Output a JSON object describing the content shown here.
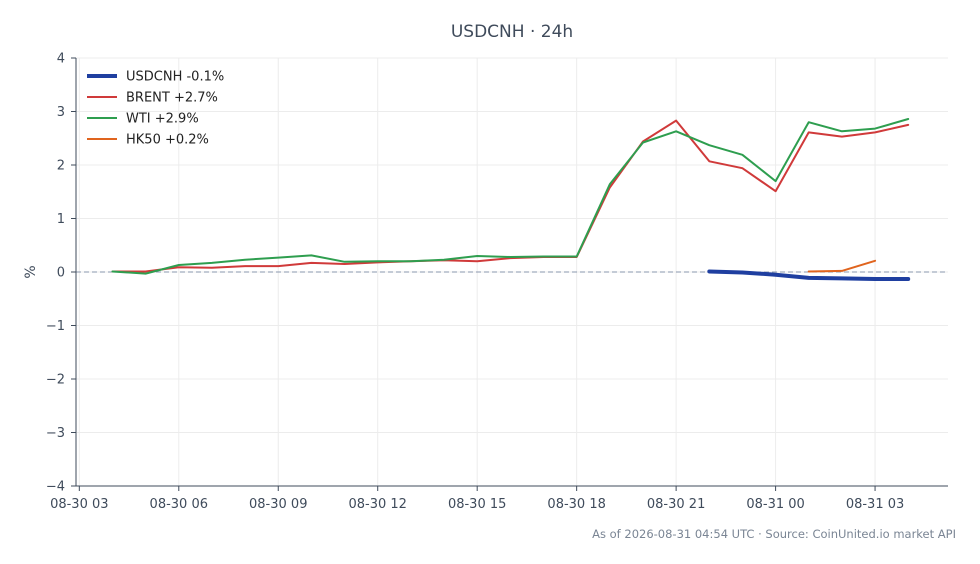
{
  "chart_data": {
    "type": "line",
    "title": "USDCNH · 24h",
    "ylabel": "%",
    "xlabel": "",
    "ylim": [
      -4,
      4
    ],
    "yticks": [
      4,
      3,
      2,
      1,
      0,
      -1,
      -2,
      -3,
      -4
    ],
    "ytick_labels": [
      "4",
      "3",
      "2",
      "1",
      "0",
      "−1",
      "−2",
      "−3",
      "−4"
    ],
    "xlim": [
      -0.1,
      26.2
    ],
    "xticks": [
      0,
      3,
      6,
      9,
      12,
      15,
      18,
      21,
      24
    ],
    "xtick_labels": [
      "08-30 03",
      "08-30 06",
      "08-30 09",
      "08-30 12",
      "08-30 15",
      "08-30 18",
      "08-30 21",
      "08-31 00",
      "08-31 03"
    ],
    "grid": true,
    "zero_line": true,
    "legend_position": "top-left",
    "series": [
      {
        "name": "USDCNH -0.1%",
        "color": "#1f3fa0",
        "width": 4,
        "x": [
          19,
          20,
          21,
          22,
          23,
          24,
          25
        ],
        "y": [
          0.01,
          -0.01,
          -0.05,
          -0.11,
          -0.12,
          -0.13,
          -0.13
        ]
      },
      {
        "name": "BRENT +2.7%",
        "color": "#d03a3a",
        "width": 2,
        "x": [
          1,
          2,
          3,
          4,
          5,
          6,
          7,
          8,
          9,
          10,
          11,
          12,
          13,
          14,
          15,
          16,
          17,
          18,
          19,
          20,
          21,
          22,
          23,
          24,
          25
        ],
        "y": [
          0.01,
          0.01,
          0.09,
          0.08,
          0.11,
          0.11,
          0.17,
          0.15,
          0.18,
          0.2,
          0.22,
          0.2,
          0.26,
          0.28,
          0.28,
          1.58,
          2.44,
          2.83,
          2.07,
          1.94,
          1.51,
          2.61,
          2.53,
          2.61,
          2.75
        ]
      },
      {
        "name": "WTI +2.9%",
        "color": "#2e9e4f",
        "width": 2,
        "x": [
          1,
          2,
          3,
          4,
          5,
          6,
          7,
          8,
          9,
          10,
          11,
          12,
          13,
          14,
          15,
          16,
          17,
          18,
          19,
          20,
          21,
          22,
          23,
          24,
          25
        ],
        "y": [
          0.01,
          -0.03,
          0.13,
          0.17,
          0.23,
          0.27,
          0.31,
          0.19,
          0.2,
          0.2,
          0.23,
          0.3,
          0.28,
          0.29,
          0.29,
          1.64,
          2.42,
          2.63,
          2.37,
          2.19,
          1.7,
          2.8,
          2.63,
          2.68,
          2.86
        ]
      },
      {
        "name": "HK50 +0.2%",
        "color": "#e0641e",
        "width": 2,
        "x": [
          22,
          23,
          24
        ],
        "y": [
          0.01,
          0.02,
          0.21
        ]
      }
    ],
    "footer": "As of 2026-08-31 04:54 UTC · Source: CoinUnited.io market API"
  }
}
